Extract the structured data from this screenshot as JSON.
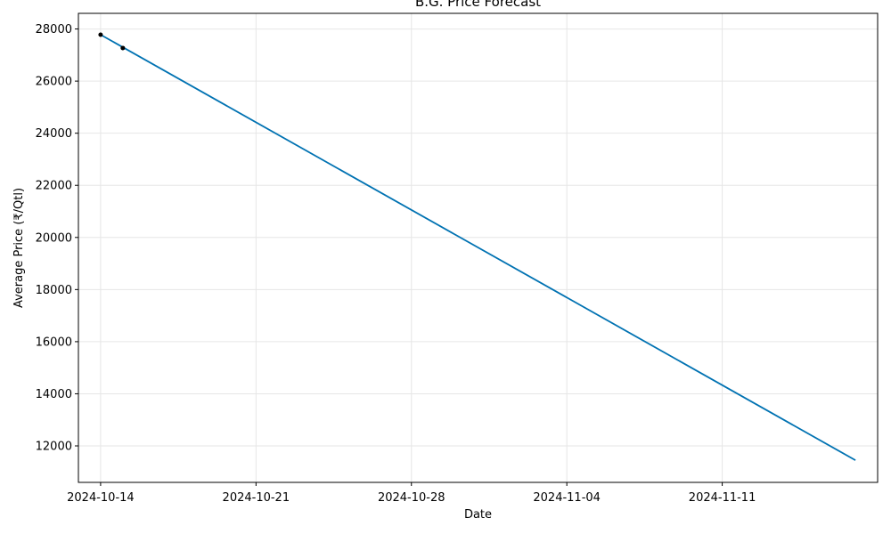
{
  "chart_data": {
    "type": "line",
    "title": "B.G. Price Forecast",
    "xlabel": "Date",
    "ylabel": "Average Price (₹/Qtl)",
    "x_ticks": [
      "2024-10-14",
      "2024-10-21",
      "2024-10-28",
      "2024-11-04",
      "2024-11-11"
    ],
    "y_ticks": [
      12000,
      14000,
      16000,
      18000,
      20000,
      22000,
      24000,
      26000,
      28000
    ],
    "xlim": [
      "2024-10-13",
      "2024-11-18"
    ],
    "ylim": [
      10600,
      28600
    ],
    "grid": true,
    "series": [
      {
        "type": "line",
        "color": "#0072b2",
        "x": [
          "2024-10-14",
          "2024-11-17"
        ],
        "y": [
          27780,
          11450
        ]
      },
      {
        "type": "scatter",
        "color": "#000000",
        "x": [
          "2024-10-14",
          "2024-10-15"
        ],
        "y": [
          27780,
          27270
        ]
      }
    ]
  }
}
